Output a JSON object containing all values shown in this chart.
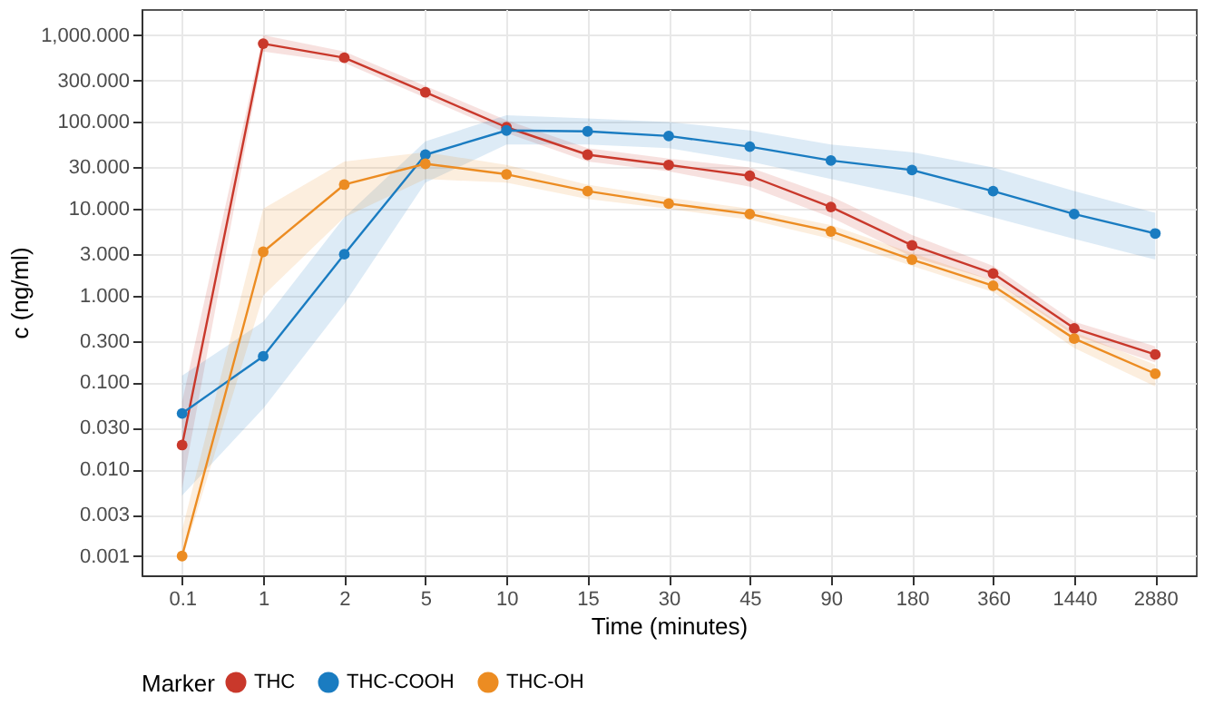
{
  "chart_data": {
    "type": "line",
    "xlabel": "Time (minutes)",
    "ylabel": "c (ng/ml)",
    "legend_title": "Marker",
    "legend": "bottom",
    "grid": true,
    "marker": "circle",
    "line_style": "solid",
    "log": "y",
    "categories": [
      "0.1",
      "1",
      "2",
      "5",
      "10",
      "15",
      "30",
      "45",
      "90",
      "180",
      "360",
      "1440",
      "2880"
    ],
    "ylim": [
      0.0006,
      2000
    ],
    "yticks": [
      {
        "value": 0.001,
        "label": "0.001"
      },
      {
        "value": 0.003,
        "label": "0.003"
      },
      {
        "value": 0.01,
        "label": "0.010"
      },
      {
        "value": 0.03,
        "label": "0.030"
      },
      {
        "value": 0.1,
        "label": "0.100"
      },
      {
        "value": 0.3,
        "label": "0.300"
      },
      {
        "value": 1,
        "label": "1.000"
      },
      {
        "value": 3,
        "label": "3.000"
      },
      {
        "value": 10,
        "label": "10.000"
      },
      {
        "value": 30,
        "label": "30.000"
      },
      {
        "value": 100,
        "label": "100.000"
      },
      {
        "value": 300,
        "label": "300.000"
      },
      {
        "value": 1000,
        "label": "1,000.000"
      }
    ],
    "series": [
      {
        "name": "THC",
        "color": "#c9382b",
        "values": [
          0.019,
          800,
          550,
          220,
          87,
          42,
          32,
          24,
          10.5,
          3.8,
          1.8,
          0.42,
          0.21
        ],
        "lower": [
          0.006,
          650,
          480,
          190,
          75,
          35,
          27,
          18,
          8,
          2.8,
          1.5,
          0.35,
          0.17
        ],
        "upper": [
          0.06,
          1000,
          650,
          260,
          105,
          50,
          38,
          30,
          14,
          5,
          2.2,
          0.5,
          0.26
        ]
      },
      {
        "name": "THC-COOH",
        "color": "#1a7cc1",
        "values": [
          0.044,
          0.2,
          3.0,
          42,
          80,
          78,
          69,
          52,
          36,
          28,
          16,
          8.7,
          5.2
        ],
        "lower": [
          0.005,
          0.05,
          0.8,
          20,
          55,
          55,
          50,
          35,
          22,
          14,
          8,
          4.5,
          2.6
        ],
        "upper": [
          0.12,
          0.5,
          8,
          60,
          120,
          110,
          100,
          80,
          55,
          45,
          30,
          16,
          9
        ]
      },
      {
        "name": "THC-OH",
        "color": "#ec8c22",
        "values": [
          0.001,
          3.2,
          19,
          33,
          25,
          16,
          11.5,
          8.7,
          5.5,
          2.6,
          1.3,
          0.32,
          0.126
        ],
        "lower": [
          0.0009,
          1,
          8,
          22,
          20,
          13,
          10,
          7.5,
          4.5,
          2.2,
          1.1,
          0.25,
          0.09
        ],
        "upper": [
          0.002,
          10,
          35,
          45,
          32,
          19,
          13.5,
          10,
          6.5,
          3.1,
          1.5,
          0.38,
          0.16
        ]
      }
    ]
  }
}
